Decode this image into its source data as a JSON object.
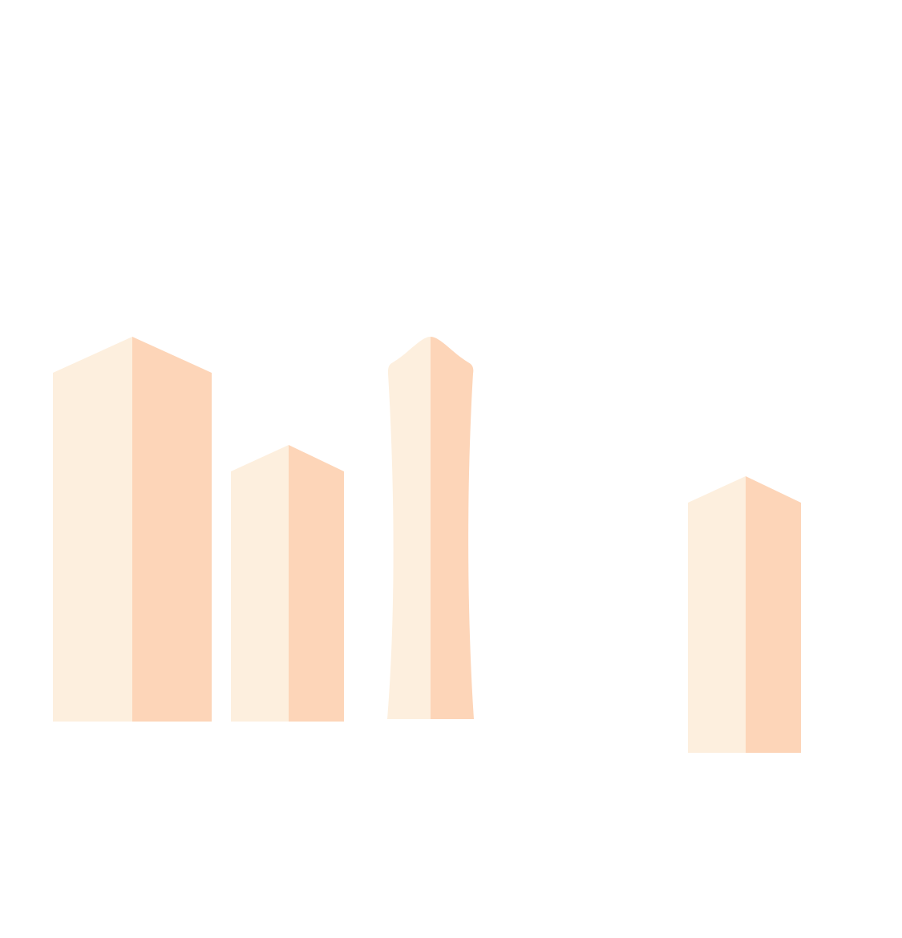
{
  "scene": {
    "description_icon": "city-skyline-illustration",
    "background_color": "#FFFFFF",
    "colors": {
      "light_face": "#FDEFDE",
      "shadow_face": "#FDD5B8"
    },
    "buildings": [
      {
        "name": "tall-tower-left",
        "shape": "peaked-roof"
      },
      {
        "name": "medium-tower",
        "shape": "peaked-roof"
      },
      {
        "name": "curved-spire-tower",
        "shape": "curved-spire"
      },
      {
        "name": "short-tower-right",
        "shape": "peaked-roof"
      }
    ]
  }
}
